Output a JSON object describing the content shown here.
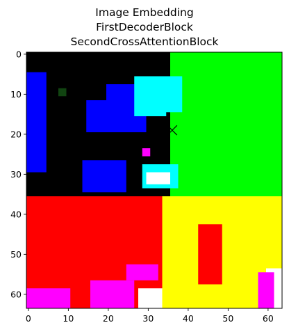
{
  "chart_data": {
    "type": "heatmap",
    "title_lines": [
      "Image Embedding",
      "FirstDecoderBlock",
      "SecondCrossAttentionBlock"
    ],
    "xlabel": "",
    "ylabel": "",
    "xlim": [
      -0.5,
      63.5
    ],
    "ylim": [
      63.5,
      -0.5
    ],
    "x_ticks": [
      0,
      10,
      20,
      30,
      40,
      50,
      60
    ],
    "y_ticks": [
      0,
      10,
      20,
      30,
      40,
      50,
      60
    ],
    "grid": false,
    "colors": {
      "black": "#000000",
      "blue": "#0000ff",
      "cyan": "#00ffff",
      "magenta": "#ff00ff",
      "green": "#00ff00",
      "red": "#ff0000",
      "yellow": "#ffff00",
      "white": "#ffffff",
      "dark_green": "#114411"
    },
    "regions": [
      {
        "color": "black",
        "x": [
          0,
          36
        ],
        "y": [
          0,
          36
        ]
      },
      {
        "color": "green",
        "x": [
          36,
          64
        ],
        "y": [
          0,
          36
        ]
      },
      {
        "color": "red",
        "x": [
          0,
          34
        ],
        "y": [
          36,
          64
        ]
      },
      {
        "color": "yellow",
        "x": [
          34,
          64
        ],
        "y": [
          36,
          64
        ]
      },
      {
        "color": "blue",
        "x": [
          0,
          5
        ],
        "y": [
          5,
          30
        ]
      },
      {
        "color": "blue",
        "x": [
          15,
          30
        ],
        "y": [
          12,
          20
        ]
      },
      {
        "color": "blue",
        "x": [
          20,
          34
        ],
        "y": [
          8,
          14
        ]
      },
      {
        "color": "blue",
        "x": [
          14,
          25
        ],
        "y": [
          27,
          35
        ]
      },
      {
        "color": "cyan",
        "x": [
          27,
          35
        ],
        "y": [
          6,
          16
        ]
      },
      {
        "color": "cyan",
        "x": [
          32,
          39
        ],
        "y": [
          6,
          15
        ]
      },
      {
        "color": "cyan",
        "x": [
          29,
          38
        ],
        "y": [
          28,
          34
        ]
      },
      {
        "color": "white",
        "x": [
          30,
          36
        ],
        "y": [
          30,
          33
        ]
      },
      {
        "color": "magenta",
        "x": [
          29,
          31
        ],
        "y": [
          24,
          26
        ]
      },
      {
        "color": "dark_green",
        "x": [
          8,
          10
        ],
        "y": [
          9,
          11
        ]
      },
      {
        "color": "magenta",
        "x": [
          0,
          11
        ],
        "y": [
          59,
          64
        ]
      },
      {
        "color": "magenta",
        "x": [
          16,
          27
        ],
        "y": [
          57,
          64
        ]
      },
      {
        "color": "magenta",
        "x": [
          25,
          33
        ],
        "y": [
          53,
          57
        ]
      },
      {
        "color": "white",
        "x": [
          28,
          34
        ],
        "y": [
          59,
          64
        ]
      },
      {
        "color": "red",
        "x": [
          43,
          49
        ],
        "y": [
          43,
          58
        ]
      },
      {
        "color": "white",
        "x": [
          60,
          64
        ],
        "y": [
          54,
          64
        ]
      },
      {
        "color": "magenta",
        "x": [
          58,
          62
        ],
        "y": [
          55,
          64
        ]
      }
    ],
    "marker": {
      "shape": "x",
      "x": 36,
      "y": 19,
      "color": "black"
    }
  }
}
